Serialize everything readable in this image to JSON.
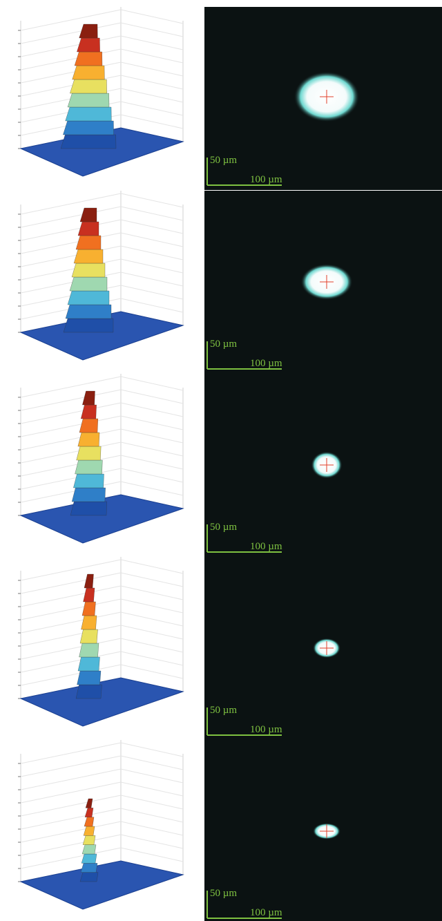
{
  "panels": [
    {
      "vertical_scale": "50 µm",
      "horizontal_scale": "100 µm"
    },
    {
      "vertical_scale": "50 µm",
      "horizontal_scale": "100 µm"
    },
    {
      "vertical_scale": "50 µm",
      "horizontal_scale": "100 µm"
    },
    {
      "vertical_scale": "50 µm",
      "horizontal_scale": "100 µm"
    },
    {
      "vertical_scale": "50 µm",
      "horizontal_scale": "100 µm"
    }
  ]
}
